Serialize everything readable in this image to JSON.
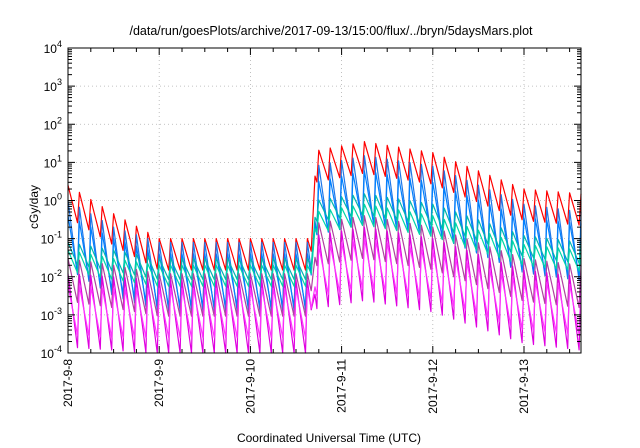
{
  "chart_data": {
    "type": "line",
    "title": "/data/run/goesPlots/archive/2017-09-13/15:00/flux/../bryn/5daysMars.plot",
    "xlabel": "Coordinated Universal Time (UTC)",
    "ylabel": "cGy/day",
    "yscale": "log",
    "ylim": [
      0.0001,
      10000
    ],
    "xlim": [
      "2017-09-08 00:00",
      "2017-09-13 15:00"
    ],
    "grid": true,
    "legend": "none",
    "y_ticks": [
      {
        "mant": "10",
        "exp": "-4"
      },
      {
        "mant": "10",
        "exp": "-3"
      },
      {
        "mant": "10",
        "exp": "-2"
      },
      {
        "mant": "10",
        "exp": "-1"
      },
      {
        "mant": "10",
        "exp": "0"
      },
      {
        "mant": "10",
        "exp": "1"
      },
      {
        "mant": "10",
        "exp": "2"
      },
      {
        "mant": "10",
        "exp": "3"
      },
      {
        "mant": "10",
        "exp": "4"
      }
    ],
    "x_ticks": [
      "2017-9-8",
      "2017-9-9",
      "2017-9-10",
      "2017-9-11",
      "2017-9-12",
      "2017-9-13"
    ],
    "oscillation_period_hours": 3,
    "series": [
      {
        "color": "#ff0000",
        "band": [
          0.0,
          0.45
        ],
        "times": [
          "2017-09-08 00:00",
          "2017-09-08 12:00",
          "2017-09-09 00:00",
          "2017-09-10 00:00",
          "2017-09-10 16:00",
          "2017-09-10 17:00",
          "2017-09-11 06:00",
          "2017-09-12 00:00",
          "2017-09-13 00:00",
          "2017-09-13 15:00"
        ],
        "peaks": [
          2.5,
          0.45,
          0.1,
          0.1,
          0.1,
          20,
          35,
          18,
          2,
          1.5
        ]
      },
      {
        "color": "#1f77e8",
        "band": [
          0.0,
          0.5
        ],
        "times": [
          "2017-09-08 00:00",
          "2017-09-08 12:00",
          "2017-09-09 00:00",
          "2017-09-10 00:00",
          "2017-09-10 16:00",
          "2017-09-10 17:00",
          "2017-09-11 06:00",
          "2017-09-12 00:00",
          "2017-09-13 00:00",
          "2017-09-13 15:00"
        ],
        "peaks": [
          1.0,
          0.2,
          0.08,
          0.08,
          0.08,
          8,
          15,
          8,
          0.8,
          0.5
        ]
      },
      {
        "color": "#0080ff",
        "band": [
          0.0,
          0.5
        ],
        "times": [
          "2017-09-08 00:00",
          "2017-09-08 12:00",
          "2017-09-09 00:00",
          "2017-09-10 00:00",
          "2017-09-10 16:00",
          "2017-09-10 17:00",
          "2017-09-11 06:00",
          "2017-09-12 00:00",
          "2017-09-13 00:00",
          "2017-09-13 15:00"
        ],
        "peaks": [
          0.4,
          0.1,
          0.04,
          0.04,
          0.04,
          3,
          6,
          3,
          0.35,
          0.25
        ]
      },
      {
        "color": "#00b7b0",
        "band": [
          0.0,
          0.5
        ],
        "times": [
          "2017-09-08 00:00",
          "2017-09-08 12:00",
          "2017-09-09 00:00",
          "2017-09-10 00:00",
          "2017-09-10 16:00",
          "2017-09-10 17:00",
          "2017-09-11 06:00",
          "2017-09-12 00:00",
          "2017-09-13 00:00",
          "2017-09-13 15:00"
        ],
        "peaks": [
          0.08,
          0.05,
          0.03,
          0.03,
          0.03,
          1.0,
          1.5,
          0.8,
          0.12,
          0.08
        ]
      },
      {
        "color": "#00d5a8",
        "band": [
          0.0,
          0.5
        ],
        "times": [
          "2017-09-08 00:00",
          "2017-09-08 12:00",
          "2017-09-09 00:00",
          "2017-09-10 00:00",
          "2017-09-10 16:00",
          "2017-09-10 17:00",
          "2017-09-11 06:00",
          "2017-09-12 00:00",
          "2017-09-13 00:00",
          "2017-09-13 15:00"
        ],
        "peaks": [
          0.05,
          0.03,
          0.02,
          0.02,
          0.02,
          0.5,
          0.8,
          0.4,
          0.07,
          0.05
        ]
      },
      {
        "color": "#b040a0",
        "band": [
          0.0,
          0.5
        ],
        "times": [
          "2017-09-08 00:00",
          "2017-09-08 12:00",
          "2017-09-09 00:00",
          "2017-09-10 00:00",
          "2017-09-10 16:00",
          "2017-09-10 17:00",
          "2017-09-11 06:00",
          "2017-09-12 00:00",
          "2017-09-13 00:00",
          "2017-09-13 15:00"
        ],
        "peaks": [
          0.03,
          0.02,
          0.012,
          0.012,
          0.012,
          0.25,
          0.4,
          0.2,
          0.03,
          0.02
        ]
      },
      {
        "color": "#e000e0",
        "band": [
          0.0,
          0.55
        ],
        "times": [
          "2017-09-08 00:00",
          "2017-09-08 12:00",
          "2017-09-09 00:00",
          "2017-09-10 00:00",
          "2017-09-10 16:00",
          "2017-09-10 17:00",
          "2017-09-11 06:00",
          "2017-09-12 00:00",
          "2017-09-13 00:00",
          "2017-09-13 15:00"
        ],
        "peaks": [
          0.012,
          0.01,
          0.008,
          0.008,
          0.008,
          0.12,
          0.2,
          0.1,
          0.015,
          0.01
        ]
      },
      {
        "color": "#ff33ff",
        "band": [
          0.0,
          0.55
        ],
        "times": [
          "2017-09-08 00:00",
          "2017-09-08 12:00",
          "2017-09-09 00:00",
          "2017-09-10 00:00",
          "2017-09-10 16:00",
          "2017-09-10 17:00",
          "2017-09-11 06:00",
          "2017-09-12 00:00",
          "2017-09-13 00:00",
          "2017-09-13 15:00"
        ],
        "peaks": [
          0.006,
          0.005,
          0.005,
          0.005,
          0.005,
          0.06,
          0.1,
          0.05,
          0.008,
          0.006
        ]
      }
    ]
  }
}
